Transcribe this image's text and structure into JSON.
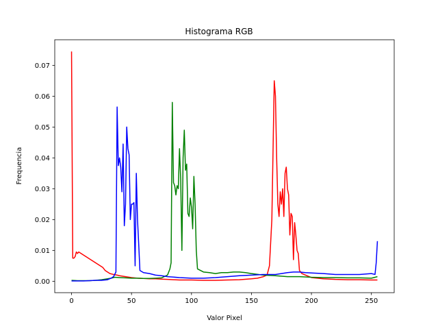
{
  "chart_data": {
    "type": "line",
    "title": "Histograma RGB",
    "xlabel": "Valor Pixel",
    "ylabel": "Frequencia",
    "xlim": [
      -14,
      269
    ],
    "ylim": [
      -0.0037,
      0.0783
    ],
    "xticks": [
      0,
      50,
      100,
      150,
      200,
      250
    ],
    "yticks": [
      0.0,
      0.01,
      0.02,
      0.03,
      0.04,
      0.05,
      0.06,
      0.07
    ],
    "ytick_labels": [
      "0.00",
      "0.01",
      "0.02",
      "0.03",
      "0.04",
      "0.05",
      "0.06",
      "0.07"
    ],
    "grid": false,
    "legend": "none",
    "colors": {
      "red": "#ff0000",
      "green": "#008000",
      "blue": "#0000ff"
    },
    "series": [
      {
        "color": "red",
        "points": [
          [
            0,
            0.0745
          ],
          [
            1,
            0.0075
          ],
          [
            2,
            0.0075
          ],
          [
            3,
            0.008
          ],
          [
            4,
            0.0095
          ],
          [
            5,
            0.009
          ],
          [
            6,
            0.0095
          ],
          [
            8,
            0.009
          ],
          [
            10,
            0.0085
          ],
          [
            12,
            0.008
          ],
          [
            14,
            0.0075
          ],
          [
            16,
            0.007
          ],
          [
            18,
            0.0065
          ],
          [
            20,
            0.006
          ],
          [
            22,
            0.0055
          ],
          [
            24,
            0.005
          ],
          [
            26,
            0.0045
          ],
          [
            28,
            0.0035
          ],
          [
            30,
            0.003
          ],
          [
            32,
            0.0025
          ],
          [
            35,
            0.0022
          ],
          [
            38,
            0.002
          ],
          [
            40,
            0.0018
          ],
          [
            45,
            0.0015
          ],
          [
            50,
            0.0012
          ],
          [
            55,
            0.001
          ],
          [
            60,
            0.0009
          ],
          [
            65,
            0.0008
          ],
          [
            70,
            0.0008
          ],
          [
            75,
            0.0007
          ],
          [
            80,
            0.0006
          ],
          [
            85,
            0.0005
          ],
          [
            90,
            0.0004
          ],
          [
            100,
            0.0004
          ],
          [
            110,
            0.0003
          ],
          [
            120,
            0.0003
          ],
          [
            130,
            0.0004
          ],
          [
            140,
            0.0005
          ],
          [
            150,
            0.0008
          ],
          [
            155,
            0.001
          ],
          [
            160,
            0.0015
          ],
          [
            163,
            0.002
          ],
          [
            165,
            0.005
          ],
          [
            167,
            0.02
          ],
          [
            169,
            0.065
          ],
          [
            170,
            0.06
          ],
          [
            171,
            0.04
          ],
          [
            172,
            0.025
          ],
          [
            173,
            0.021
          ],
          [
            174,
            0.029
          ],
          [
            175,
            0.025
          ],
          [
            176,
            0.03
          ],
          [
            177,
            0.021
          ],
          [
            178,
            0.035
          ],
          [
            179,
            0.037
          ],
          [
            180,
            0.03
          ],
          [
            181,
            0.028
          ],
          [
            182,
            0.015
          ],
          [
            183,
            0.022
          ],
          [
            184,
            0.021
          ],
          [
            185,
            0.007
          ],
          [
            186,
            0.019
          ],
          [
            187,
            0.015
          ],
          [
            188,
            0.01
          ],
          [
            189,
            0.009
          ],
          [
            190,
            0.0035
          ],
          [
            191,
            0.003
          ],
          [
            192,
            0.0025
          ],
          [
            195,
            0.002
          ],
          [
            200,
            0.0012
          ],
          [
            210,
            0.0008
          ],
          [
            220,
            0.0006
          ],
          [
            230,
            0.0005
          ],
          [
            240,
            0.0005
          ],
          [
            250,
            0.0004
          ],
          [
            255,
            0.0004
          ]
        ]
      },
      {
        "color": "green",
        "points": [
          [
            0,
            0.0003
          ],
          [
            5,
            0.0002
          ],
          [
            10,
            0.0002
          ],
          [
            15,
            0.0002
          ],
          [
            20,
            0.0003
          ],
          [
            25,
            0.0005
          ],
          [
            30,
            0.0008
          ],
          [
            33,
            0.001
          ],
          [
            36,
            0.0013
          ],
          [
            40,
            0.0012
          ],
          [
            45,
            0.0011
          ],
          [
            50,
            0.001
          ],
          [
            55,
            0.001
          ],
          [
            60,
            0.0009
          ],
          [
            65,
            0.0009
          ],
          [
            70,
            0.001
          ],
          [
            75,
            0.0011
          ],
          [
            80,
            0.002
          ],
          [
            82,
            0.004
          ],
          [
            83,
            0.006
          ],
          [
            84,
            0.058
          ],
          [
            85,
            0.032
          ],
          [
            86,
            0.031
          ],
          [
            87,
            0.028
          ],
          [
            88,
            0.031
          ],
          [
            89,
            0.03
          ],
          [
            90,
            0.043
          ],
          [
            91,
            0.033
          ],
          [
            92,
            0.01
          ],
          [
            93,
            0.04
          ],
          [
            94,
            0.049
          ],
          [
            95,
            0.036
          ],
          [
            96,
            0.038
          ],
          [
            97,
            0.022
          ],
          [
            98,
            0.021
          ],
          [
            99,
            0.027
          ],
          [
            100,
            0.024
          ],
          [
            101,
            0.017
          ],
          [
            102,
            0.034
          ],
          [
            103,
            0.025
          ],
          [
            104,
            0.01
          ],
          [
            105,
            0.004
          ],
          [
            110,
            0.003
          ],
          [
            115,
            0.0028
          ],
          [
            120,
            0.0025
          ],
          [
            125,
            0.0028
          ],
          [
            130,
            0.0028
          ],
          [
            135,
            0.003
          ],
          [
            140,
            0.003
          ],
          [
            145,
            0.0028
          ],
          [
            150,
            0.0025
          ],
          [
            160,
            0.002
          ],
          [
            170,
            0.0018
          ],
          [
            180,
            0.0015
          ],
          [
            190,
            0.0015
          ],
          [
            200,
            0.0013
          ],
          [
            210,
            0.0012
          ],
          [
            220,
            0.0012
          ],
          [
            230,
            0.0011
          ],
          [
            240,
            0.0011
          ],
          [
            250,
            0.001
          ],
          [
            255,
            0.0015
          ]
        ]
      },
      {
        "color": "blue",
        "points": [
          [
            0,
            0.0001
          ],
          [
            5,
            0.0001
          ],
          [
            10,
            0.0001
          ],
          [
            15,
            0.0002
          ],
          [
            20,
            0.0003
          ],
          [
            25,
            0.0003
          ],
          [
            30,
            0.0005
          ],
          [
            33,
            0.001
          ],
          [
            35,
            0.0015
          ],
          [
            37,
            0.003
          ],
          [
            38,
            0.0565
          ],
          [
            39,
            0.0375
          ],
          [
            40,
            0.04
          ],
          [
            41,
            0.037
          ],
          [
            42,
            0.029
          ],
          [
            43,
            0.0445
          ],
          [
            44,
            0.018
          ],
          [
            45,
            0.025
          ],
          [
            46,
            0.05
          ],
          [
            47,
            0.043
          ],
          [
            48,
            0.041
          ],
          [
            49,
            0.02
          ],
          [
            50,
            0.025
          ],
          [
            51,
            0.025
          ],
          [
            52,
            0.0255
          ],
          [
            53,
            0.005
          ],
          [
            54,
            0.035
          ],
          [
            55,
            0.02
          ],
          [
            56,
            0.012
          ],
          [
            57,
            0.0035
          ],
          [
            60,
            0.0028
          ],
          [
            65,
            0.0025
          ],
          [
            70,
            0.002
          ],
          [
            75,
            0.0018
          ],
          [
            80,
            0.0015
          ],
          [
            90,
            0.0012
          ],
          [
            100,
            0.001
          ],
          [
            110,
            0.001
          ],
          [
            120,
            0.0012
          ],
          [
            130,
            0.0015
          ],
          [
            140,
            0.0018
          ],
          [
            150,
            0.002
          ],
          [
            160,
            0.0022
          ],
          [
            170,
            0.0022
          ],
          [
            175,
            0.0025
          ],
          [
            180,
            0.0028
          ],
          [
            185,
            0.003
          ],
          [
            190,
            0.003
          ],
          [
            195,
            0.0028
          ],
          [
            200,
            0.0027
          ],
          [
            210,
            0.0025
          ],
          [
            220,
            0.0022
          ],
          [
            230,
            0.0022
          ],
          [
            240,
            0.0022
          ],
          [
            250,
            0.0025
          ],
          [
            253,
            0.0022
          ],
          [
            254,
            0.006
          ],
          [
            255,
            0.013
          ]
        ]
      }
    ]
  }
}
